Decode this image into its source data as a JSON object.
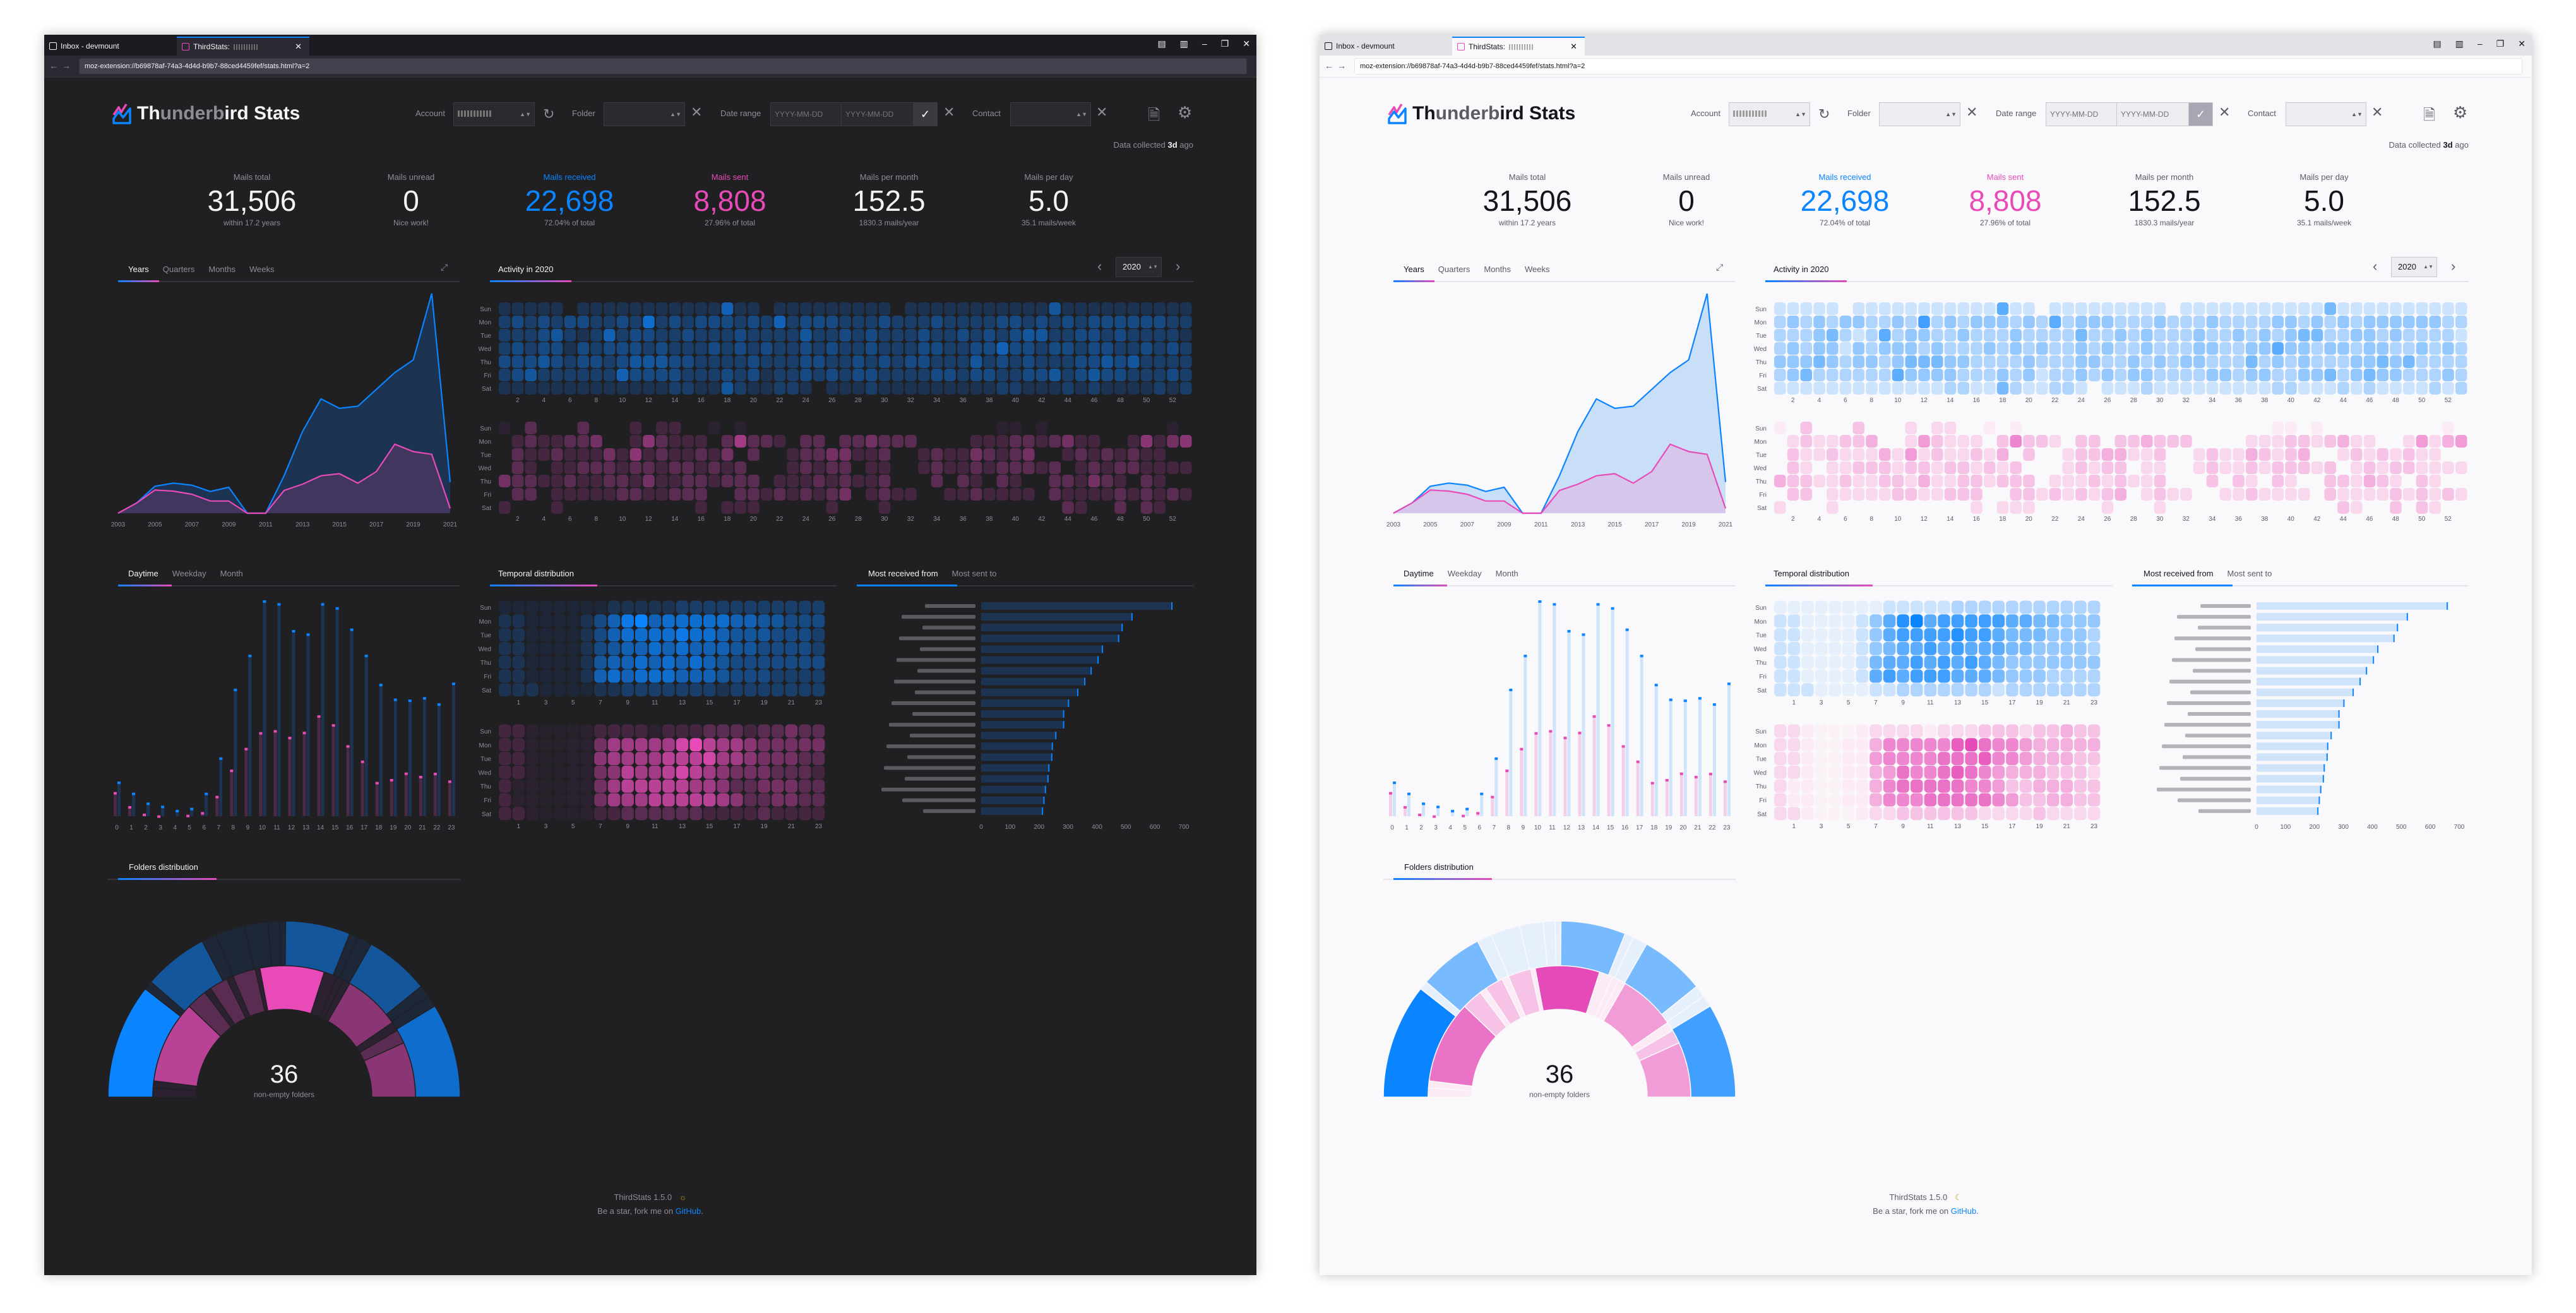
{
  "browser": {
    "tabs": [
      {
        "label": "Inbox - devmount"
      },
      {
        "label": "ThirdStats:"
      }
    ],
    "url": "moz-extension://b69878af-74a3-4d4d-b9b7-88ced4459fef/stats.html?a=2",
    "controls": {
      "minimize": "–",
      "restore": "❐",
      "close": "✕"
    }
  },
  "header": {
    "title_part1": "Th",
    "title_part2": "underb",
    "title_part3": "ird Stats",
    "filters": {
      "account_label": "Account",
      "folder_label": "Folder",
      "date_label": "Date range",
      "date_start_placeholder": "YYYY-MM-DD",
      "date_end_placeholder": "YYYY-MM-DD",
      "contact_label": "Contact"
    },
    "collected_prefix": "Data collected ",
    "collected_value": "3d",
    "collected_suffix": " ago"
  },
  "stats": [
    {
      "label": "Mails total",
      "value": "31,506",
      "sub": "within 17.2 years"
    },
    {
      "label": "Mails unread",
      "value": "0",
      "sub": "Nice work!"
    },
    {
      "label": "Mails received",
      "value": "22,698",
      "sub": "72.04% of total"
    },
    {
      "label": "Mails sent",
      "value": "8,808",
      "sub": "27.96% of total"
    },
    {
      "label": "Mails per month",
      "value": "152.5",
      "sub": "1830.3 mails/year"
    },
    {
      "label": "Mails per day",
      "value": "5.0",
      "sub": "35.1 mails/week"
    }
  ],
  "sections": {
    "timeline_tabs": [
      "Years",
      "Quarters",
      "Months",
      "Weeks"
    ],
    "activity_tab": "Activity in 2020",
    "year_select": "2020",
    "distribution_tabs": [
      "Daytime",
      "Weekday",
      "Month"
    ],
    "temporal_tab": "Temporal distribution",
    "contacts_tabs": [
      "Most received from",
      "Most sent to"
    ],
    "folders_tab": "Folders distribution"
  },
  "colors": {
    "received": "#0a84ff",
    "sent": "#e84bb8"
  },
  "chart_data": [
    {
      "type": "area",
      "x": [
        2003,
        2004,
        2005,
        2006,
        2007,
        2008,
        2009,
        2010,
        2011,
        2012,
        2013,
        2014,
        2015,
        2016,
        2017,
        2018,
        2019,
        2020,
        2021
      ],
      "tick_labels": [
        "2003",
        "2005",
        "2007",
        "2009",
        "2011",
        "2013",
        "2015",
        "2017",
        "2019",
        "2021"
      ],
      "series": [
        {
          "values": [
            0,
            183,
            487,
            544,
            506,
            392,
            468,
            0,
            0,
            677,
            1476,
            2065,
            1894,
            1932,
            2236,
            2540,
            2769,
            3967,
            563
          ],
          "color": "#0a84ff"
        },
        {
          "values": [
            0,
            182,
            418,
            399,
            342,
            220,
            220,
            0,
            0,
            410,
            524,
            676,
            714,
            543,
            752,
            1246,
            1113,
            1064,
            87
          ],
          "color": "#e84bb8"
        }
      ]
    },
    {
      "type": "heatmap",
      "title": "Activity in 2020",
      "rows": [
        "Sun",
        "Mon",
        "Tue",
        "Wed",
        "Thu",
        "Fri",
        "Sat"
      ],
      "week_labels": [
        "2",
        "4",
        "6",
        "8",
        "10",
        "12",
        "14",
        "16",
        "18",
        "20",
        "22",
        "24",
        "26",
        "28",
        "30",
        "32",
        "34",
        "36",
        "38",
        "40",
        "42",
        "44",
        "46",
        "48",
        "50",
        "52"
      ],
      "levels_note_scale": "0-9",
      "received": [
        "22222022222222222622022222222202222222222252222222222",
        "34343443343734344434363444333433343333443434344444433",
        "33345323634433433343333533434333433434345533443433332",
        "34344243444343334343433434334333443344644344344334343",
        "44454344345554433334333443343434433353434333445453333",
        "34533333364444333434233434344333344344334453454433343",
        "22222222222223322532233202223222222222332223232222323"
      ],
      "sent": [
        "10300030002022001010000000000000000000110100000000010",
        "02322334002532220363320330334333000022233234220025245",
        "03223222425232232403002334422300232243234002323232200",
        "03202233323323323230002323302200232232333230232332222",
        "43322322332422332333022232322300030320320033243203200",
        "03302222233223330033232323402322002232222032222323232",
        "20002000000000020222000002000200000000000003200303200"
      ]
    },
    {
      "type": "bar",
      "categories": [
        "0",
        "1",
        "2",
        "3",
        "4",
        "5",
        "6",
        "7",
        "8",
        "9",
        "10",
        "11",
        "12",
        "13",
        "14",
        "15",
        "16",
        "17",
        "18",
        "19",
        "20",
        "21",
        "22",
        "23"
      ],
      "series": [
        {
          "values": [
            284,
            193,
            112,
            86,
            52,
            69,
            193,
            482,
            1045,
            1323,
            1769,
            1746,
            1526,
            1498,
            1746,
            1713,
            1538,
            1323,
            1085,
            964,
            956,
            976,
            925,
            1095
          ],
          "color": "#0a84ff"
        },
        {
          "values": [
            198,
            83,
            21,
            7,
            0,
            12,
            34,
            167,
            382,
            560,
            689,
            706,
            651,
            692,
            827,
            754,
            582,
            456,
            281,
            305,
            358,
            331,
            356,
            293
          ],
          "color": "#e84bb8"
        }
      ]
    },
    {
      "type": "heatmap",
      "title": "Temporal distribution",
      "rows": [
        "Sun",
        "Mon",
        "Tue",
        "Wed",
        "Thu",
        "Fri",
        "Sat"
      ],
      "hour_labels": [
        "1",
        "3",
        "5",
        "7",
        "9",
        "11",
        "13",
        "15",
        "17",
        "19",
        "21",
        "23"
      ],
      "received": [
        "111111112222233333333333",
        "221111246896777776655444",
        "221111246777787765554443",
        "221111245667676665544443",
        "221111256676767654444444",
        "221111267677766654443333",
        "222111122333333323333333"
      ],
      "sent": [
        "221000122221222333233433",
        "221001146666689766544444",
        "221001156666777866544433",
        "221001145766787654443332",
        "211001146777776653344433",
        "211001146667777765334433",
        "221000122333333222232222"
      ]
    },
    {
      "type": "bar",
      "orientation": "horizontal",
      "title": "Most received from",
      "values": [
        661,
        523,
        489,
        477,
        421,
        406,
        382,
        360,
        336,
        304,
        287,
        287,
        260,
        248,
        246,
        236,
        233,
        224,
        219,
        214
      ],
      "xlim": [
        0,
        700
      ],
      "tick_labels": [
        "0",
        "100",
        "200",
        "300",
        "400",
        "500",
        "600",
        "700"
      ]
    },
    {
      "type": "pie",
      "title": "Folders distribution",
      "center_value": "36",
      "center_label": "non-empty folders",
      "received_segments": [
        [
          39,
          5
        ],
        [
          3,
          1
        ],
        [
          22,
          3
        ],
        [
          5,
          1
        ],
        [
          10,
          1
        ],
        [
          8,
          1
        ],
        [
          4,
          1
        ],
        [
          2,
          1
        ],
        [
          22,
          3
        ],
        [
          3,
          1
        ],
        [
          5,
          1
        ],
        [
          22,
          3
        ],
        [
          4,
          1
        ],
        [
          4,
          1
        ],
        [
          32,
          4
        ]
      ],
      "sent_segments": [
        [
          4,
          1
        ],
        [
          3,
          1
        ],
        [
          36,
          4
        ],
        [
          9,
          2
        ],
        [
          3,
          1
        ],
        [
          8,
          2
        ],
        [
          3,
          1
        ],
        [
          10,
          2
        ],
        [
          2,
          1
        ],
        [
          28,
          5
        ],
        [
          6,
          1
        ],
        [
          3,
          1
        ],
        [
          3,
          1
        ],
        [
          25,
          3
        ],
        [
          4,
          1
        ],
        [
          6,
          2
        ],
        [
          24,
          3
        ]
      ]
    }
  ],
  "footer": {
    "version": "ThirdStats 1.5.0",
    "tagline": "Be a star, fork me on ",
    "link": "GitHub",
    "period": "."
  }
}
